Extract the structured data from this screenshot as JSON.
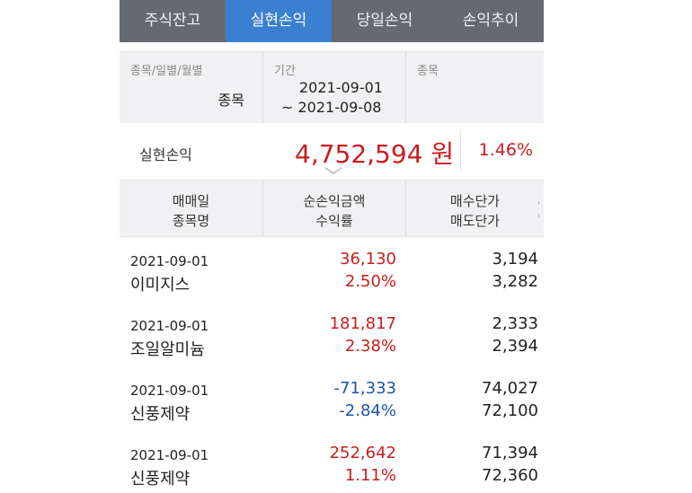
{
  "tabs": [
    {
      "label": "주식잔고",
      "active": false
    },
    {
      "label": "실현손익",
      "active": true
    },
    {
      "label": "당일손익",
      "active": false
    },
    {
      "label": "손익추이",
      "active": false
    }
  ],
  "filter": {
    "type_label": "종목/일별/월별",
    "type_value": "종목",
    "period_label": "기간",
    "period_from": "2021-09-01",
    "period_to": "~ 2021-09-08",
    "stock_label": "종목"
  },
  "summary": {
    "label": "실현손익",
    "amount": "4,752,594 원",
    "rate": "1.46%"
  },
  "table_header": {
    "col1_line1": "매매일",
    "col1_line2": "종목명",
    "col2_line1": "순손익금액",
    "col2_line2": "수익률",
    "col3_line1": "매수단가",
    "col3_line2": "매도단가"
  },
  "rows": [
    {
      "date": "2021-09-01",
      "name": "이미지스",
      "pnl": "36,130",
      "rate": "2.50%",
      "buy": "3,194",
      "sell": "3,282",
      "sign": "pos"
    },
    {
      "date": "2021-09-01",
      "name": "조일알미늄",
      "pnl": "181,817",
      "rate": "2.38%",
      "buy": "2,333",
      "sell": "2,394",
      "sign": "pos"
    },
    {
      "date": "2021-09-01",
      "name": "신풍제약",
      "pnl": "-71,333",
      "rate": "-2.84%",
      "buy": "74,027",
      "sell": "72,100",
      "sign": "neg"
    },
    {
      "date": "2021-09-01",
      "name": "신풍제약",
      "pnl": "252,642",
      "rate": "1.11%",
      "buy": "71,394",
      "sell": "72,360",
      "sign": "pos"
    }
  ],
  "colors": {
    "tab_active": "#3b7fd0",
    "tab_bar": "#666a70",
    "positive": "#c81e1e",
    "negative": "#1d55a6"
  },
  "icons": {
    "expand": "chevron-down-icon"
  }
}
